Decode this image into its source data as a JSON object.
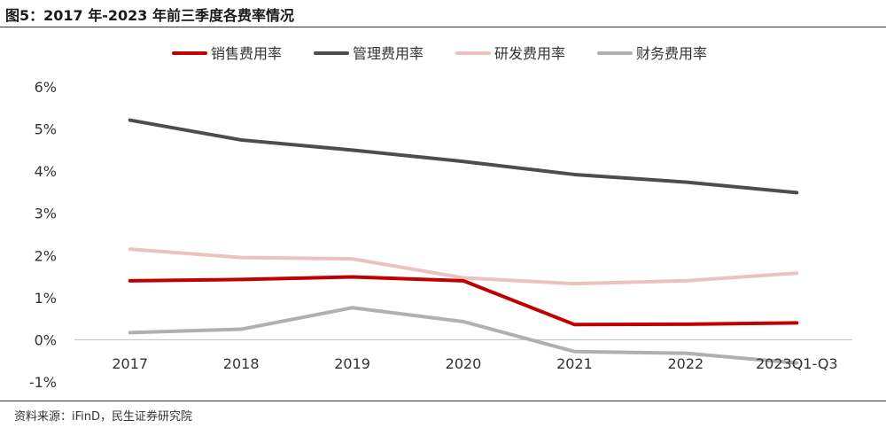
{
  "figure_title": "图5：2017 年-2023 年前三季度各费率情况",
  "source_note": "资料来源：iFinD，民生证券研究院",
  "chart_data": {
    "type": "line",
    "title": "图5：2017 年-2023 年前三季度各费率情况",
    "xlabel": "",
    "ylabel": "",
    "categories": [
      "2017",
      "2018",
      "2019",
      "2020",
      "2021",
      "2022",
      "2023Q1-Q3"
    ],
    "ylim": [
      -1,
      6
    ],
    "yticks": [
      -1,
      0,
      1,
      2,
      3,
      4,
      5,
      6
    ],
    "ytick_labels": [
      "-1%",
      "0%",
      "1%",
      "2%",
      "3%",
      "4%",
      "5%",
      "6%"
    ],
    "y_unit": "%",
    "grid": false,
    "legend_position": "top",
    "series": [
      {
        "name": "销售费用率",
        "color": "#c00000",
        "values": [
          1.4,
          1.43,
          1.49,
          1.4,
          0.36,
          0.37,
          0.4
        ]
      },
      {
        "name": "管理费用率",
        "color": "#4d4d4d",
        "values": [
          5.21,
          4.74,
          4.5,
          4.23,
          3.92,
          3.74,
          3.49
        ]
      },
      {
        "name": "研发费用率",
        "color": "#eec1c1",
        "values": [
          2.15,
          1.95,
          1.92,
          1.47,
          1.33,
          1.4,
          1.58
        ]
      },
      {
        "name": "财务费用率",
        "color": "#b0b0b0",
        "values": [
          0.17,
          0.25,
          0.76,
          0.43,
          -0.28,
          -0.32,
          -0.55
        ]
      }
    ]
  }
}
